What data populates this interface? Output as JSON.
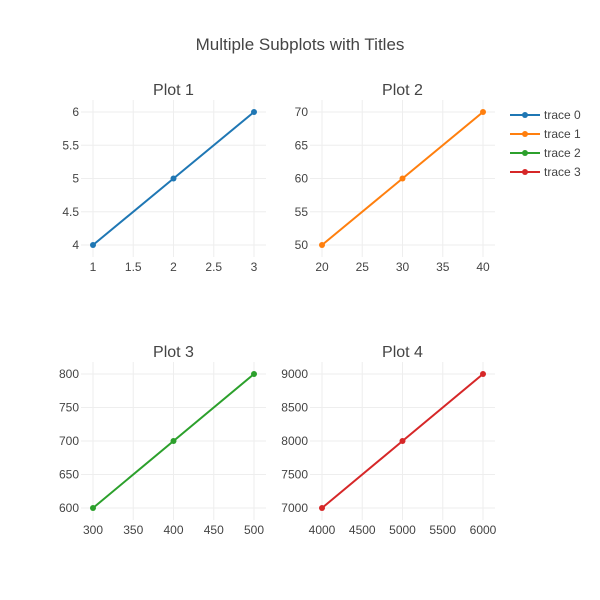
{
  "title": "Multiple Subplots with Titles",
  "chart_data": [
    {
      "type": "line",
      "title": "Plot 1",
      "x": [
        1,
        2,
        3
      ],
      "series": [
        {
          "name": "trace 0",
          "values": [
            4,
            5,
            6
          ],
          "color": "#1f77b4"
        }
      ],
      "xlim": [
        1,
        3
      ],
      "ylim": [
        4,
        6
      ],
      "xticks": [
        1,
        1.5,
        2,
        2.5,
        3
      ],
      "yticks": [
        4,
        4.5,
        5,
        5.5,
        6
      ],
      "xlabel": "",
      "ylabel": "",
      "grid": true
    },
    {
      "type": "line",
      "title": "Plot 2",
      "x": [
        20,
        30,
        40
      ],
      "series": [
        {
          "name": "trace 1",
          "values": [
            50,
            60,
            70
          ],
          "color": "#ff7f0e"
        }
      ],
      "xlim": [
        20,
        40
      ],
      "ylim": [
        50,
        70
      ],
      "xticks": [
        20,
        25,
        30,
        35,
        40
      ],
      "yticks": [
        50,
        55,
        60,
        65,
        70
      ],
      "xlabel": "",
      "ylabel": "",
      "grid": true
    },
    {
      "type": "line",
      "title": "Plot 3",
      "x": [
        300,
        400,
        500
      ],
      "series": [
        {
          "name": "trace 2",
          "values": [
            600,
            700,
            800
          ],
          "color": "#2ca02c"
        }
      ],
      "xlim": [
        300,
        500
      ],
      "ylim": [
        600,
        800
      ],
      "xticks": [
        300,
        350,
        400,
        450,
        500
      ],
      "yticks": [
        600,
        650,
        700,
        750,
        800
      ],
      "xlabel": "",
      "ylabel": "",
      "grid": true
    },
    {
      "type": "line",
      "title": "Plot 4",
      "x": [
        4000,
        5000,
        6000
      ],
      "series": [
        {
          "name": "trace 3",
          "values": [
            7000,
            8000,
            9000
          ],
          "color": "#d62728"
        }
      ],
      "xlim": [
        4000,
        6000
      ],
      "ylim": [
        7000,
        9000
      ],
      "xticks": [
        4000,
        4500,
        5000,
        5500,
        6000
      ],
      "yticks": [
        7000,
        7500,
        8000,
        8500,
        9000
      ],
      "xlabel": "",
      "ylabel": "",
      "grid": true
    }
  ],
  "legend": {
    "placement": "top-right",
    "items": [
      {
        "label": "trace 0",
        "color": "#1f77b4"
      },
      {
        "label": "trace 1",
        "color": "#ff7f0e"
      },
      {
        "label": "trace 2",
        "color": "#2ca02c"
      },
      {
        "label": "trace 3",
        "color": "#d62728"
      }
    ]
  }
}
